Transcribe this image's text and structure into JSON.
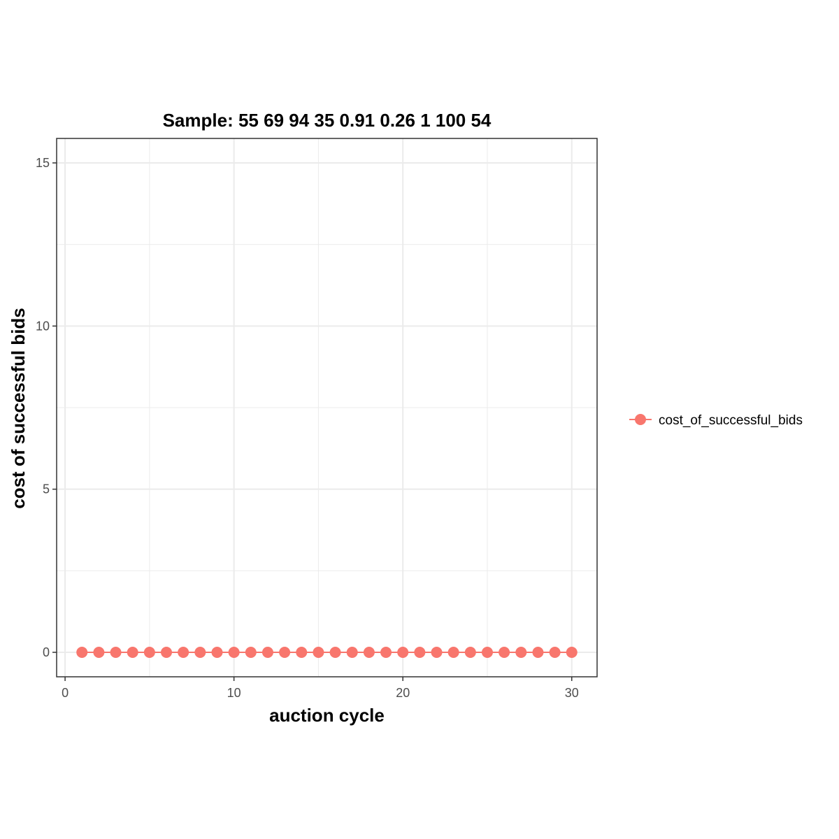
{
  "chart_data": {
    "type": "line",
    "title": "Sample: 55 69 94 35 0.91 0.26 1 100 54",
    "xlabel": "auction cycle",
    "ylabel": "cost of successful bids",
    "xlim": [
      -0.5,
      31.5
    ],
    "ylim": [
      -0.75,
      15.75
    ],
    "x_ticks": [
      0,
      10,
      20,
      30
    ],
    "y_ticks": [
      0,
      5,
      10,
      15
    ],
    "x_tick_labels": [
      "0",
      "10",
      "20",
      "30"
    ],
    "y_tick_labels": [
      "0",
      "5",
      "10",
      "15"
    ],
    "grid": true,
    "legend_position": "right",
    "x": [
      1,
      2,
      3,
      4,
      5,
      6,
      7,
      8,
      9,
      10,
      11,
      12,
      13,
      14,
      15,
      16,
      17,
      18,
      19,
      20,
      21,
      22,
      23,
      24,
      25,
      26,
      27,
      28,
      29,
      30
    ],
    "series": [
      {
        "name": "cost_of_successful_bids",
        "color": "#f8766d",
        "values": [
          0,
          0,
          0,
          0,
          0,
          0,
          0,
          0,
          0,
          0,
          0,
          0,
          0,
          0,
          0,
          0,
          0,
          0,
          0,
          0,
          0,
          0,
          0,
          0,
          0,
          0,
          0,
          0,
          0,
          0
        ]
      }
    ]
  }
}
